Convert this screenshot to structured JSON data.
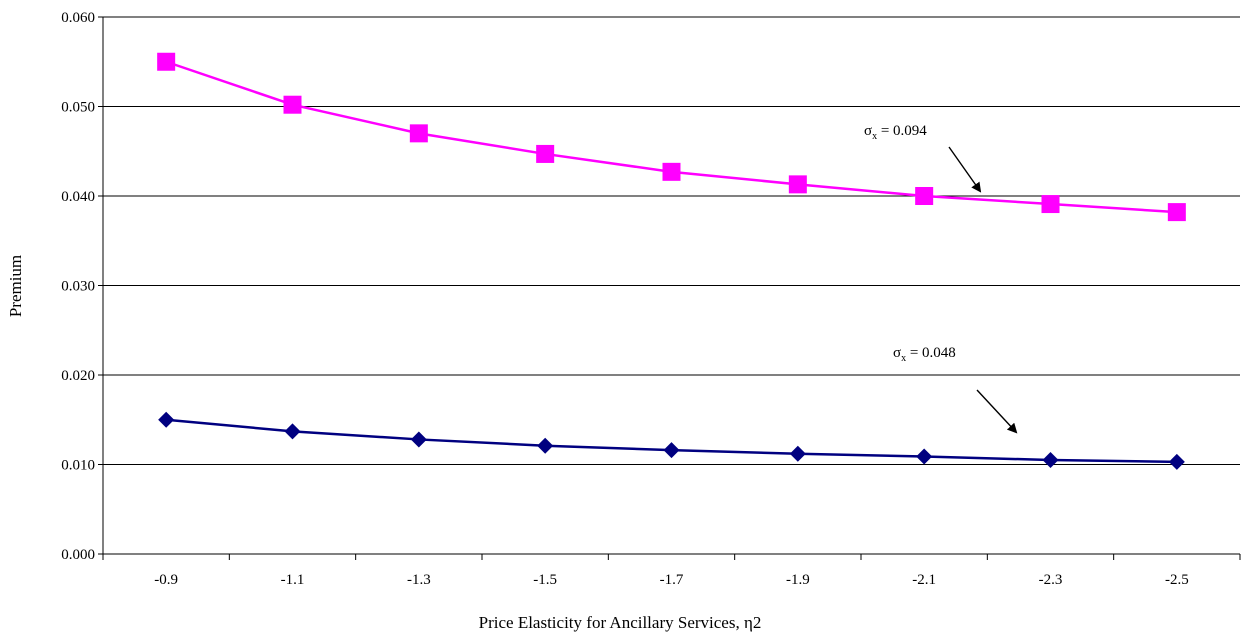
{
  "chart_data": {
    "type": "line",
    "categories": [
      "-0.9",
      "-1.1",
      "-1.3",
      "-1.5",
      "-1.7",
      "-1.9",
      "-2.1",
      "-2.3",
      "-2.5"
    ],
    "y_ticks": [
      "0.000",
      "0.010",
      "0.020",
      "0.030",
      "0.040",
      "0.050",
      "0.060"
    ],
    "ylim": [
      0,
      0.06
    ],
    "xlabel": "Price Elasticity for Ancillary Services, η2",
    "ylabel": "Premium",
    "grid": "horizontal",
    "series": [
      {
        "values": [
          0.055,
          0.0502,
          0.047,
          0.0447,
          0.0427,
          0.0413,
          0.04,
          0.0391,
          0.0382
        ],
        "color": "#ff00ff",
        "marker": "square"
      },
      {
        "values": [
          0.015,
          0.0137,
          0.0128,
          0.0121,
          0.0116,
          0.0112,
          0.0109,
          0.0105,
          0.0103
        ],
        "color": "#000080",
        "marker": "diamond"
      }
    ],
    "annotations": [
      {
        "sigma": "σ",
        "sub": "x",
        "rest": " = 0.094"
      },
      {
        "sigma": "σ",
        "sub": "x",
        "rest": " = 0.048"
      }
    ]
  }
}
